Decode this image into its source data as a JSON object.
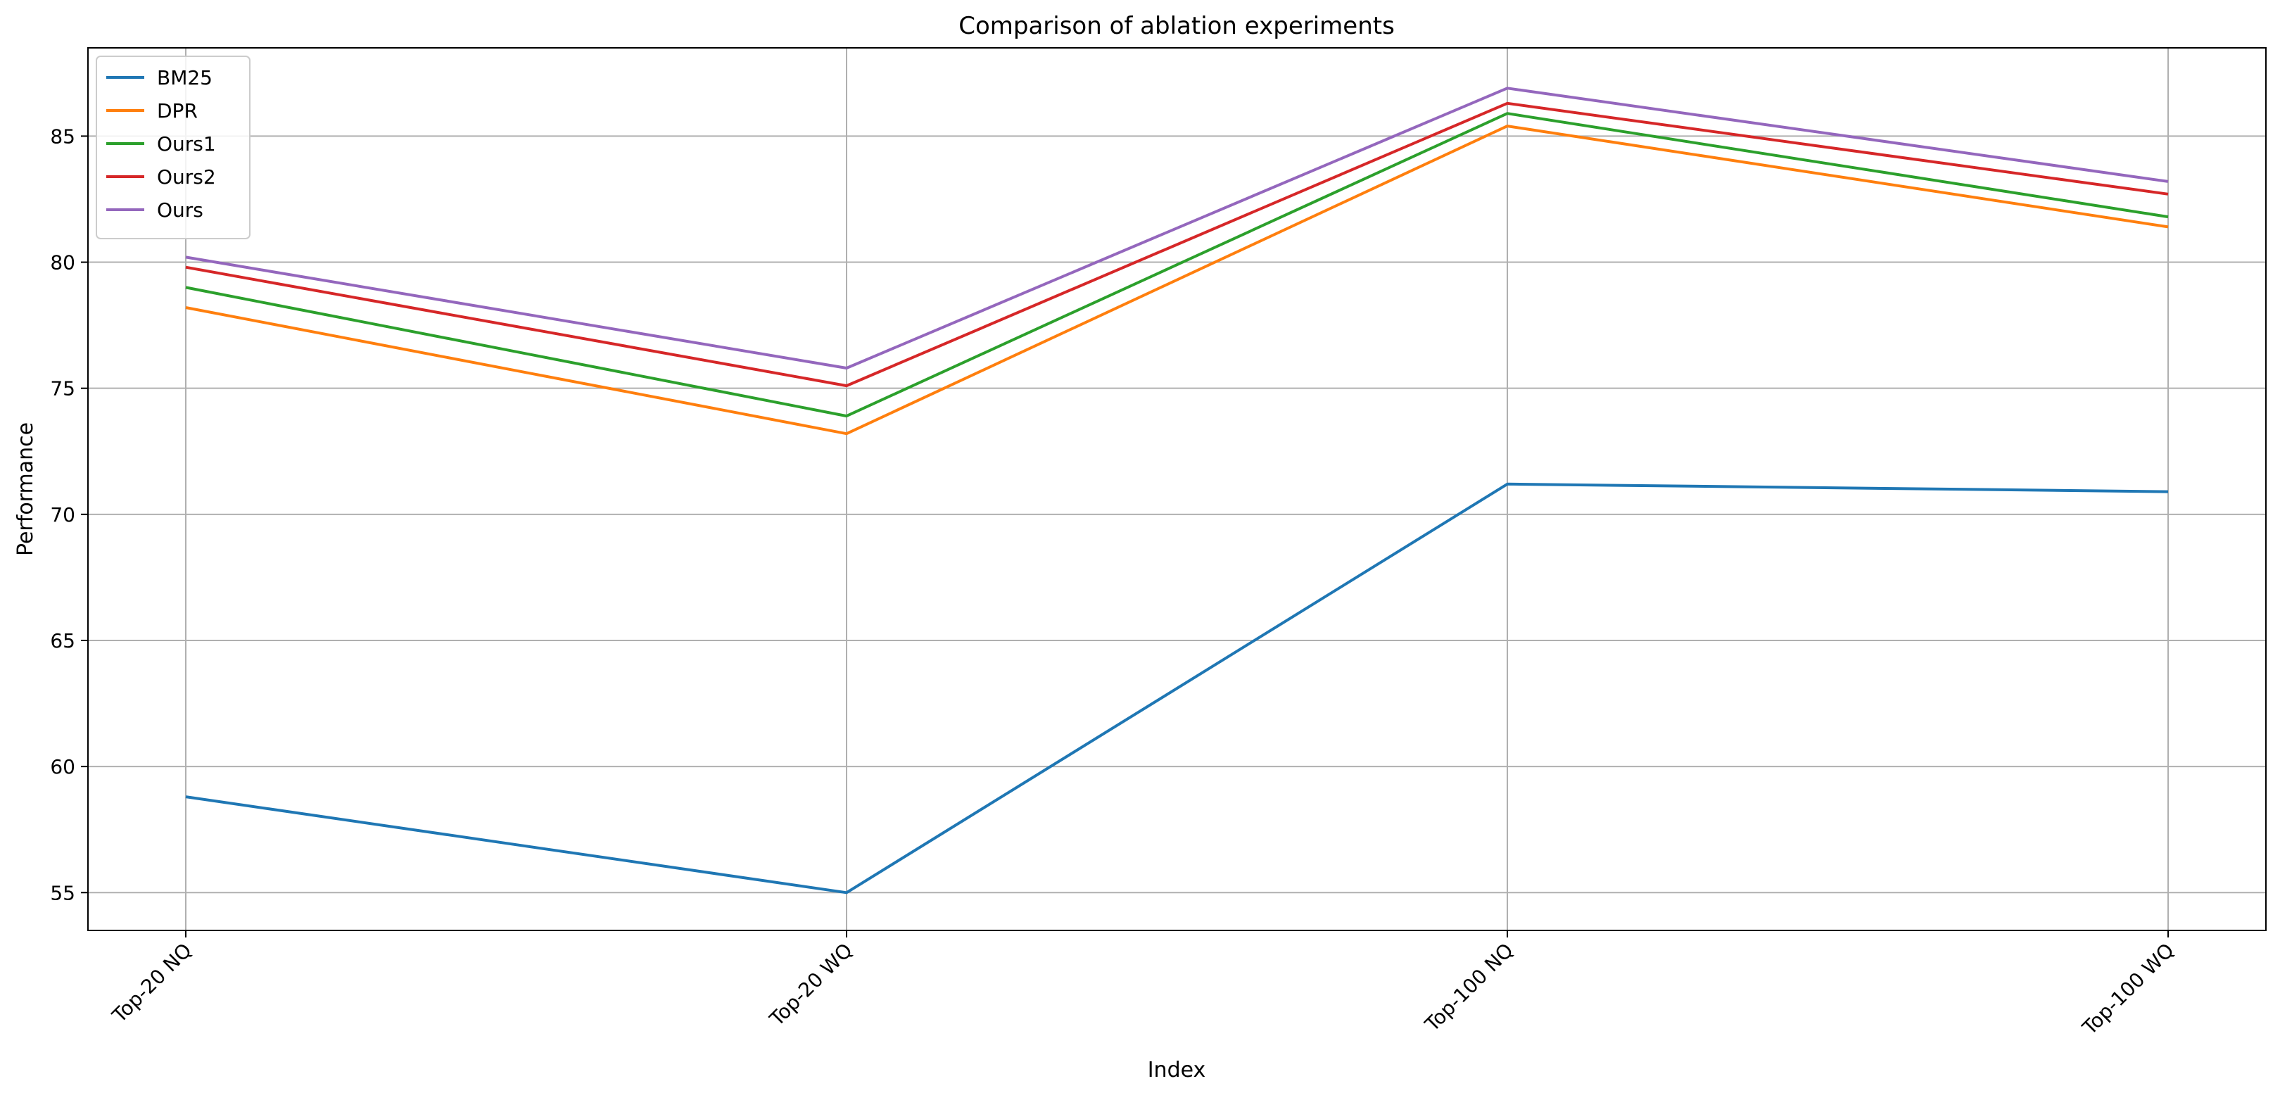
{
  "chart_data": {
    "type": "line",
    "title": "Comparison of ablation experiments",
    "xlabel": "Index",
    "ylabel": "Performance",
    "categories": [
      "Top-20 NQ",
      "Top-20 WQ",
      "Top-100 NQ",
      "Top-100 WQ"
    ],
    "ylim": [
      53.5,
      88.5
    ],
    "yticks": [
      55,
      60,
      65,
      70,
      75,
      80,
      85
    ],
    "grid": true,
    "legend_position": "top-left",
    "series": [
      {
        "name": "BM25",
        "color": "#1f77b4",
        "values": [
          58.8,
          55.0,
          71.2,
          70.9
        ]
      },
      {
        "name": "DPR",
        "color": "#ff7f0e",
        "values": [
          78.2,
          73.2,
          85.4,
          81.4
        ]
      },
      {
        "name": "Ours1",
        "color": "#2ca02c",
        "values": [
          79.0,
          73.9,
          85.9,
          81.8
        ]
      },
      {
        "name": "Ours2",
        "color": "#d62728",
        "values": [
          79.8,
          75.1,
          86.3,
          82.7
        ]
      },
      {
        "name": "Ours",
        "color": "#9467bd",
        "values": [
          80.2,
          75.8,
          86.9,
          83.2
        ]
      }
    ]
  }
}
